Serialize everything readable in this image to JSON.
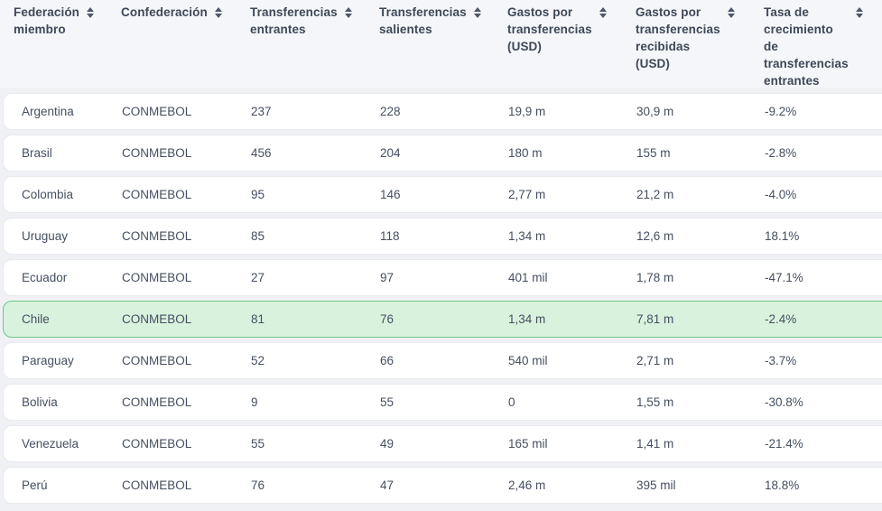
{
  "table": {
    "columns": [
      {
        "id": "federacion-miembro",
        "label": "Federación\nmiembro"
      },
      {
        "id": "confederacion",
        "label": "Confederación"
      },
      {
        "id": "transferencias-entrantes",
        "label": "Transferencias\nentrantes"
      },
      {
        "id": "transferencias-salientes",
        "label": "Transferencias\nsalientes"
      },
      {
        "id": "gastos-por-transferencias-usd",
        "label": "Gastos por\ntransferencias\n(USD)"
      },
      {
        "id": "gastos-por-transferencias-recibidas-usd",
        "label": "Gastos por\ntransferencias\nrecibidas\n(USD)"
      },
      {
        "id": "tasa-de-crecimiento-de-transferencias-entrantes",
        "label": "Tasa de\ncrecimiento\nde\ntransferencias\nentrantes"
      }
    ],
    "rows": [
      {
        "highlighted": false,
        "cells": [
          "Argentina",
          "CONMEBOL",
          "237",
          "228",
          "19,9 m",
          "30,9 m",
          "-9.2%"
        ]
      },
      {
        "highlighted": false,
        "cells": [
          "Brasil",
          "CONMEBOL",
          "456",
          "204",
          "180 m",
          "155 m",
          "-2.8%"
        ]
      },
      {
        "highlighted": false,
        "cells": [
          "Colombia",
          "CONMEBOL",
          "95",
          "146",
          "2,77 m",
          "21,2 m",
          "-4.0%"
        ]
      },
      {
        "highlighted": false,
        "cells": [
          "Uruguay",
          "CONMEBOL",
          "85",
          "118",
          "1,34 m",
          "12,6 m",
          "18.1%"
        ]
      },
      {
        "highlighted": false,
        "cells": [
          "Ecuador",
          "CONMEBOL",
          "27",
          "97",
          "401 mil",
          "1,78 m",
          "-47.1%"
        ]
      },
      {
        "highlighted": true,
        "cells": [
          "Chile",
          "CONMEBOL",
          "81",
          "76",
          "1,34 m",
          "7,81 m",
          "-2.4%"
        ]
      },
      {
        "highlighted": false,
        "cells": [
          "Paraguay",
          "CONMEBOL",
          "52",
          "66",
          "540 mil",
          "2,71 m",
          "-3.7%"
        ]
      },
      {
        "highlighted": false,
        "cells": [
          "Bolivia",
          "CONMEBOL",
          "9",
          "55",
          "0",
          "1,55 m",
          "-30.8%"
        ]
      },
      {
        "highlighted": false,
        "cells": [
          "Venezuela",
          "CONMEBOL",
          "55",
          "49",
          "165 mil",
          "1,41 m",
          "-21.4%"
        ]
      },
      {
        "highlighted": false,
        "cells": [
          "Perú",
          "CONMEBOL",
          "76",
          "47",
          "2,46 m",
          "395 mil",
          "18.8%"
        ]
      }
    ]
  },
  "colors": {
    "page_background": "#eff1f5",
    "header_background": "#f5f6f9",
    "card_background": "#ffffff",
    "card_border": "#e8eaf0",
    "highlight_background": "#d9f2de",
    "highlight_border": "#70c685",
    "text": "#454f61",
    "header_text": "#3e4859",
    "sort_icon": "#4d5669"
  }
}
